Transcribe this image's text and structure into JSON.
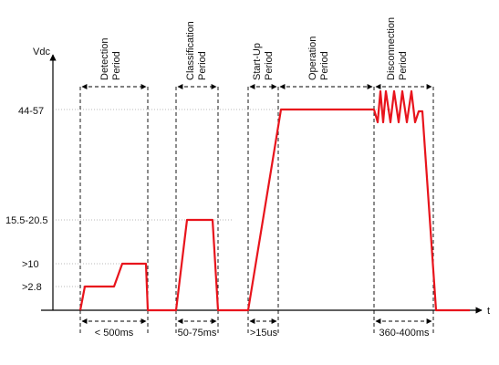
{
  "diagram": {
    "y_axis_label": "Vdc",
    "x_axis_label": "t",
    "voltage_levels": [
      "44-57",
      "15.5-20.5",
      ">10",
      ">2.8"
    ],
    "periods": [
      {
        "line1": "Detection",
        "line2": "Period"
      },
      {
        "line1": "Classification",
        "line2": "Period"
      },
      {
        "line1": "Start-Up",
        "line2": "Period"
      },
      {
        "line1": "Operation",
        "line2": "Period"
      },
      {
        "line1": "Disconnection",
        "line2": "Period"
      }
    ],
    "durations": [
      "< 500ms",
      "50-75ms",
      ">15us",
      "360-400ms"
    ],
    "waveform_color": "#e8141c",
    "guide_color": "#000000"
  }
}
